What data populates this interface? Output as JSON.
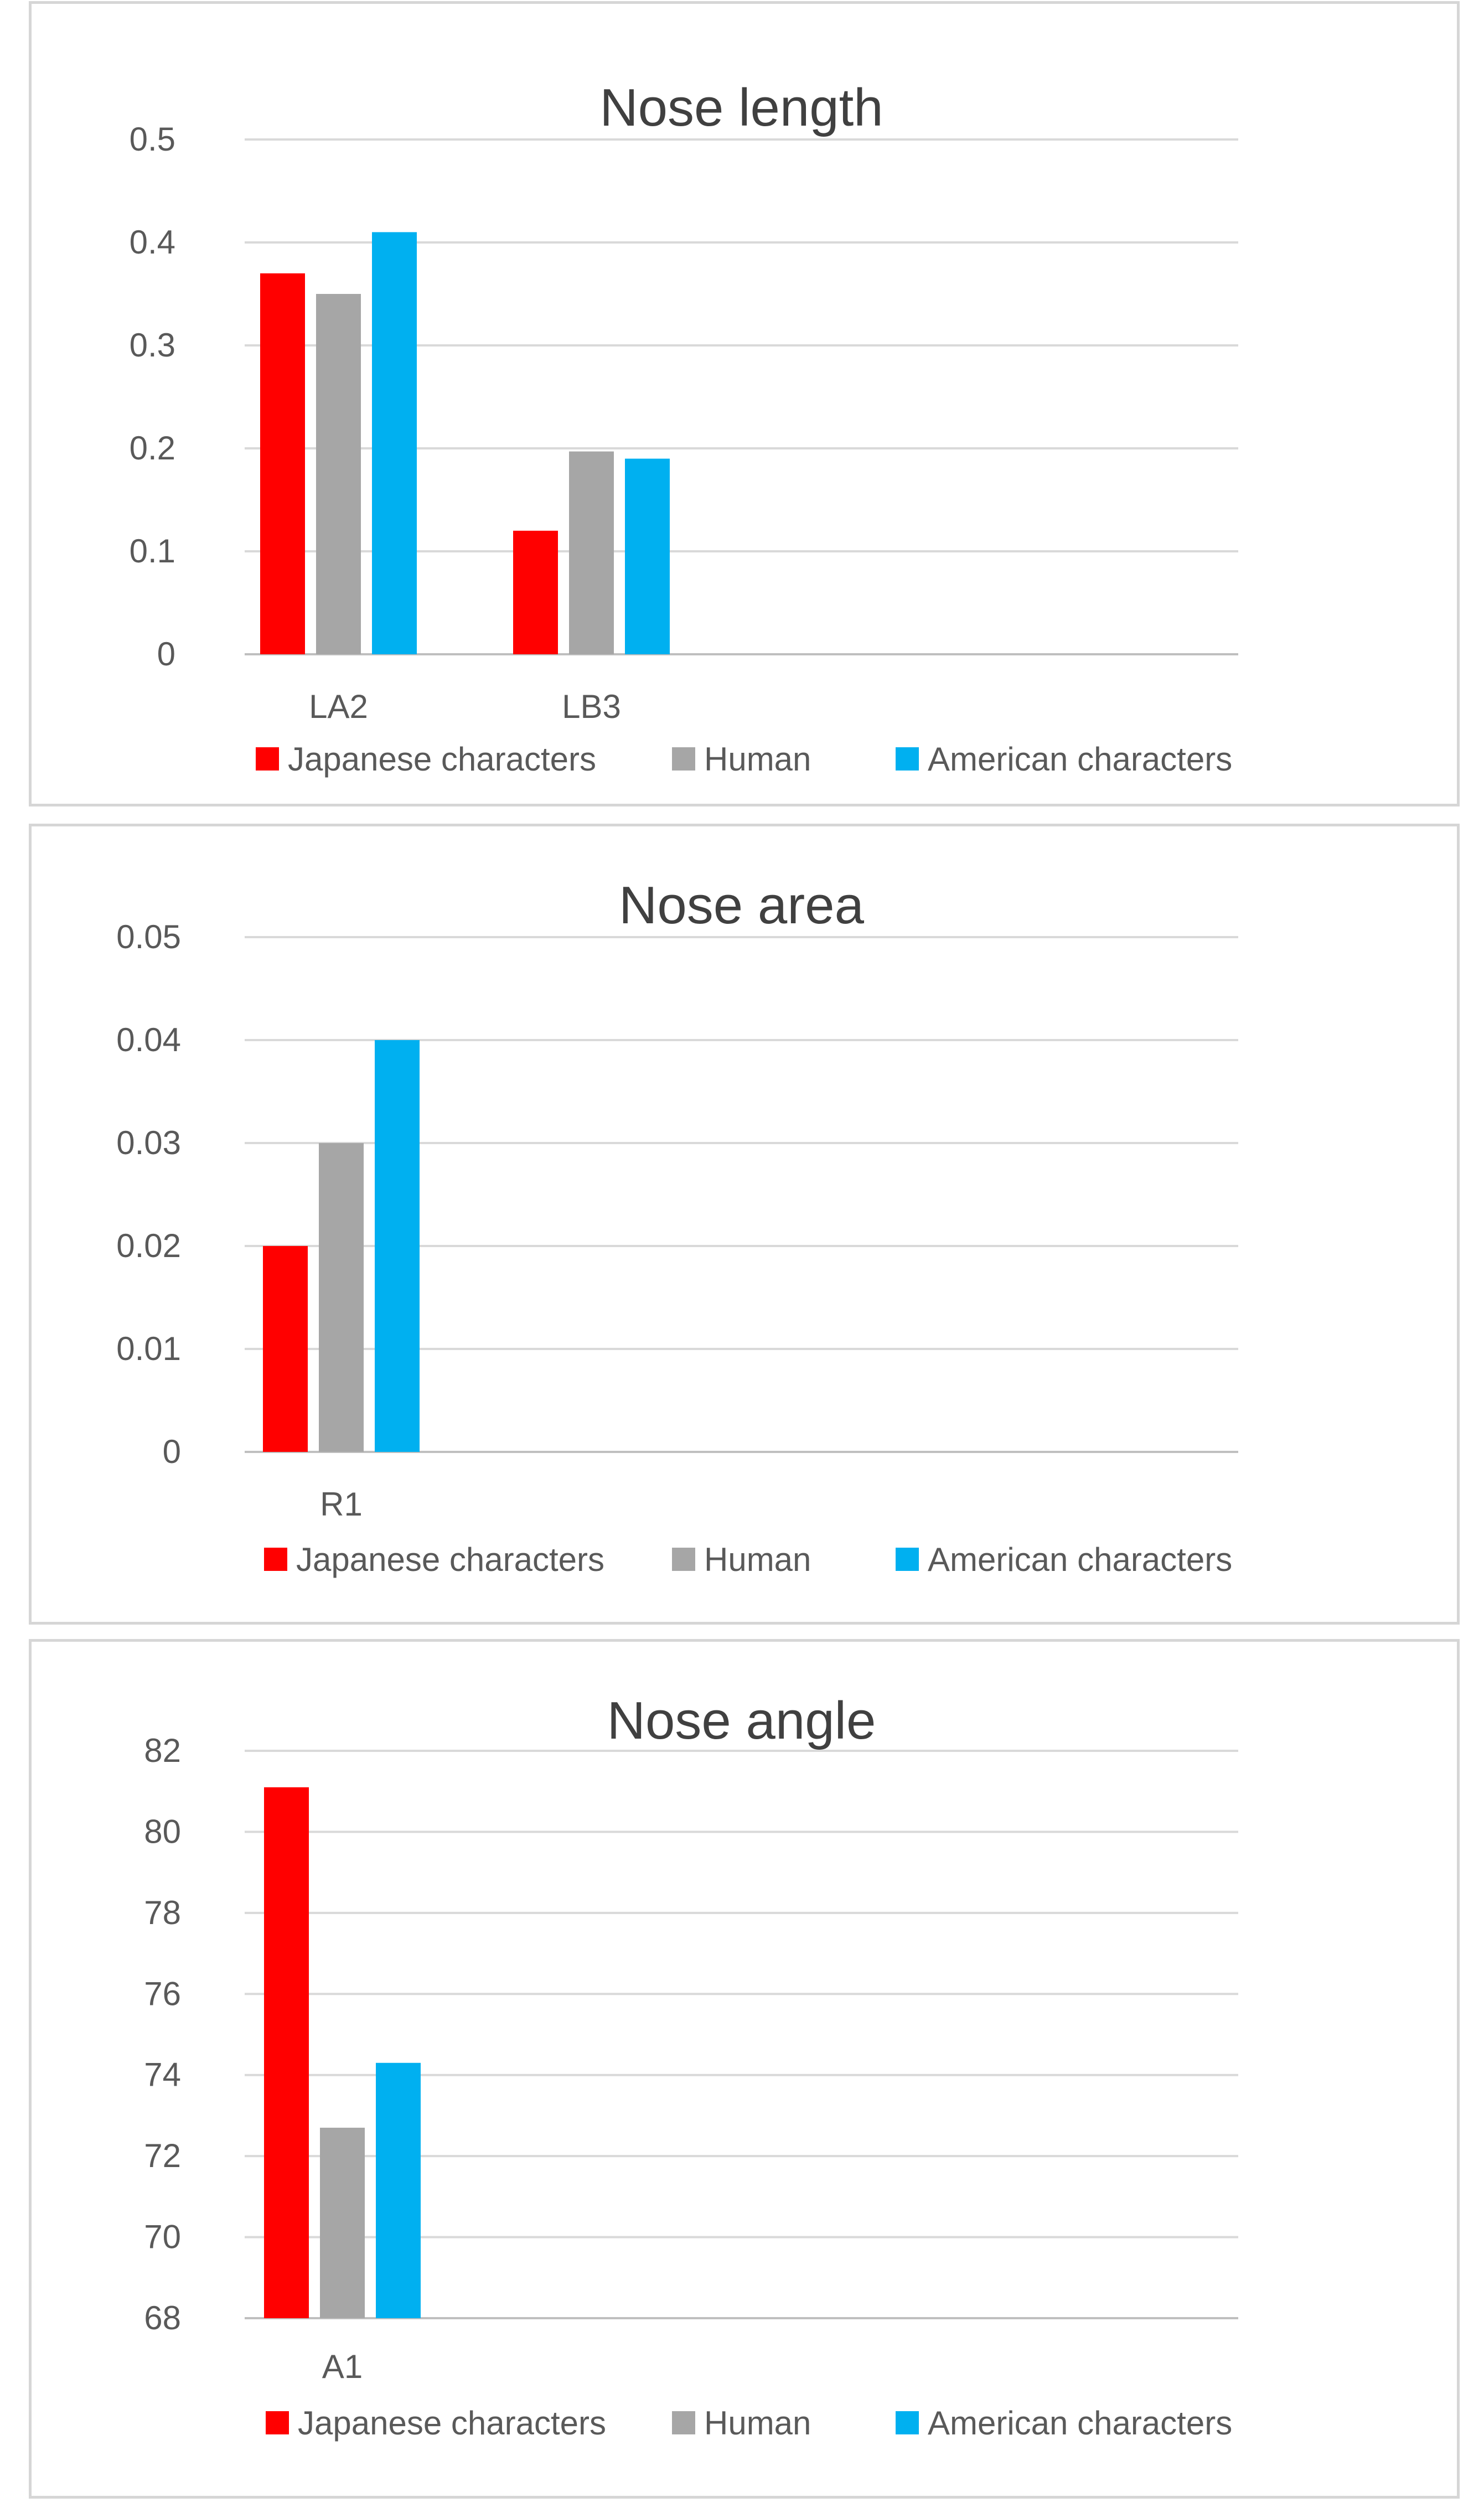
{
  "colors": {
    "japanese": "#ff0000",
    "human": "#a6a6a6",
    "american": "#00b0f0"
  },
  "chart_data": [
    {
      "type": "bar",
      "title": "Nose length",
      "xlabel": "",
      "ylabel": "",
      "categories": [
        "LA2",
        "LB3"
      ],
      "series": [
        {
          "name": "Japanese characters",
          "values": [
            0.37,
            0.12
          ]
        },
        {
          "name": "Human",
          "values": [
            0.35,
            0.197
          ]
        },
        {
          "name": "American characters",
          "values": [
            0.41,
            0.19
          ]
        }
      ],
      "ylim": [
        0,
        0.5
      ],
      "yticks": [
        "0",
        "0.1",
        "0.2",
        "0.3",
        "0.4",
        "0.5"
      ],
      "grid": true,
      "legend": "bottom"
    },
    {
      "type": "bar",
      "title": "Nose area",
      "xlabel": "",
      "ylabel": "",
      "categories": [
        "R1"
      ],
      "series": [
        {
          "name": "Japanese characters",
          "values": [
            0.02
          ]
        },
        {
          "name": "Human",
          "values": [
            0.03
          ]
        },
        {
          "name": "American characters",
          "values": [
            0.04
          ]
        }
      ],
      "ylim": [
        0,
        0.05
      ],
      "yticks": [
        "0",
        "0.01",
        "0.02",
        "0.03",
        "0.04",
        "0.05"
      ],
      "grid": true,
      "legend": "bottom"
    },
    {
      "type": "bar",
      "title": "Nose angle",
      "xlabel": "",
      "ylabel": "",
      "categories": [
        "A1"
      ],
      "series": [
        {
          "name": "Japanese characters",
          "values": [
            81.1
          ]
        },
        {
          "name": "Human",
          "values": [
            72.7
          ]
        },
        {
          "name": "American characters",
          "values": [
            74.3
          ]
        }
      ],
      "ylim": [
        68,
        82
      ],
      "yticks": [
        "68",
        "70",
        "72",
        "74",
        "76",
        "78",
        "80",
        "82"
      ],
      "grid": true,
      "legend": "bottom"
    }
  ]
}
